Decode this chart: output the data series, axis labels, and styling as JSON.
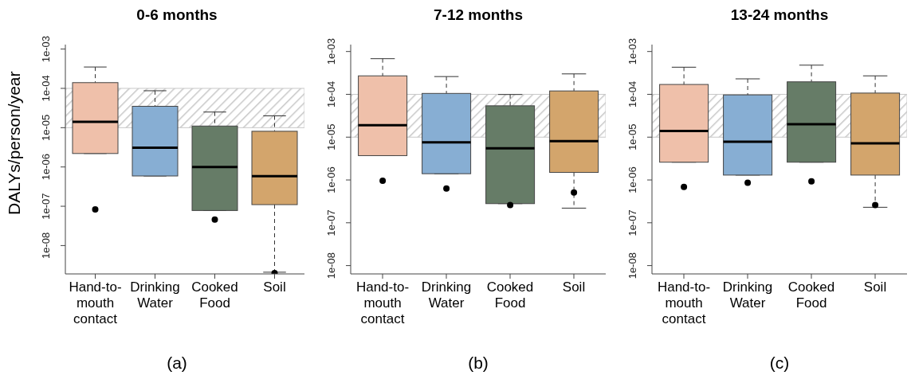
{
  "chart_data": [
    {
      "type": "box",
      "title": "0-6 months",
      "ylabel": "DALYs/person/year",
      "categories": [
        "Hand-to-mouth contact",
        "Drinking Water",
        "Cooked Food",
        "Soil"
      ],
      "colors": [
        "#efc0aa",
        "#87aed3",
        "#667c67",
        "#d3a56c"
      ],
      "boxes": [
        {
          "low": 2.2e-06,
          "q1": 2.2e-06,
          "median": 1.4e-05,
          "q3": 0.00014,
          "high": 0.00035,
          "outliers": [
            8.3e-08
          ]
        },
        {
          "low": 5.9e-07,
          "q1": 5.9e-07,
          "median": 3.1e-06,
          "q3": 3.5e-05,
          "high": 8.7e-05
        },
        {
          "low": 7.8e-08,
          "q1": 7.8e-08,
          "median": 1e-06,
          "q3": 1.1e-05,
          "high": 2.5e-05,
          "outliers": [
            4.6e-08
          ]
        },
        {
          "low": 2.1e-09,
          "q1": 1.1e-07,
          "median": 5.8e-07,
          "q3": 8.1e-06,
          "high": 2e-05,
          "outliers": [
            2e-09
          ]
        }
      ],
      "log": true,
      "ylim": [
        1.9e-09,
        0.0013
      ],
      "yticks": [
        {
          "value": 1e-08,
          "label": "1e-08"
        },
        {
          "value": 1e-07,
          "label": "1e-07"
        },
        {
          "value": 1e-06,
          "label": "1e-06"
        },
        {
          "value": 1e-05,
          "label": "1e-05"
        },
        {
          "value": 0.0001,
          "label": "1e-04"
        },
        {
          "value": 0.001,
          "label": "1e-03"
        }
      ],
      "bands": [
        {
          "axis": "y",
          "from": 1e-05,
          "to": 0.0001,
          "color": "#c8c8c8"
        }
      ],
      "annotations": [
        "(a)"
      ]
    },
    {
      "type": "box",
      "title": "7-12 months",
      "categories": [
        "Hand-to-mouth contact",
        "Drinking Water",
        "Cooked Food",
        "Soil"
      ],
      "colors": [
        "#efc0aa",
        "#87aed3",
        "#667c67",
        "#d3a56c"
      ],
      "boxes": [
        {
          "low": 3.7e-06,
          "q1": 3.7e-06,
          "median": 1.9e-05,
          "q3": 0.00027,
          "high": 0.00068,
          "outliers": [
            9.6e-07
          ]
        },
        {
          "low": 1.4e-06,
          "q1": 1.4e-06,
          "median": 7.6e-06,
          "q3": 0.000105,
          "high": 0.00026,
          "outliers": [
            6.3e-07
          ]
        },
        {
          "low": 2.8e-07,
          "q1": 2.8e-07,
          "median": 5.5e-06,
          "q3": 5.4e-05,
          "high": 9.9e-05,
          "outliers": [
            2.6e-07
          ]
        },
        {
          "low": 2.2e-07,
          "q1": 1.5e-06,
          "median": 8.1e-06,
          "q3": 0.00012,
          "high": 0.0003,
          "outliers": [
            5.1e-07
          ]
        }
      ],
      "log": true,
      "ylim": [
        6.4e-09,
        0.00145
      ],
      "yticks": [
        {
          "value": 1e-08,
          "label": "1e-08"
        },
        {
          "value": 1e-07,
          "label": "1e-07"
        },
        {
          "value": 1e-06,
          "label": "1e-06"
        },
        {
          "value": 1e-05,
          "label": "1e-05"
        },
        {
          "value": 0.0001,
          "label": "1e-04"
        },
        {
          "value": 0.001,
          "label": "1e-03"
        }
      ],
      "bands": [
        {
          "axis": "y",
          "from": 1e-05,
          "to": 0.0001,
          "color": "#c8c8c8"
        }
      ],
      "annotations": [
        "(b)"
      ]
    },
    {
      "type": "box",
      "title": "13-24 months",
      "categories": [
        "Hand-to-mouth contact",
        "Drinking Water",
        "Cooked Food",
        "Soil"
      ],
      "colors": [
        "#efc0aa",
        "#87aed3",
        "#667c67",
        "#d3a56c"
      ],
      "boxes": [
        {
          "low": 2.6e-06,
          "q1": 2.6e-06,
          "median": 1.4e-05,
          "q3": 0.00017,
          "high": 0.00043,
          "outliers": [
            6.9e-07
          ]
        },
        {
          "low": 1.3e-06,
          "q1": 1.3e-06,
          "median": 7.8e-06,
          "q3": 9.7e-05,
          "high": 0.00023,
          "outliers": [
            8.6e-07
          ]
        },
        {
          "low": 2.6e-06,
          "q1": 2.6e-06,
          "median": 2e-05,
          "q3": 0.000196,
          "high": 0.00048,
          "outliers": [
            9.3e-07
          ]
        },
        {
          "low": 2.3e-07,
          "q1": 1.3e-06,
          "median": 7.2e-06,
          "q3": 0.000107,
          "high": 0.00027,
          "outliers": [
            2.6e-07
          ]
        }
      ],
      "log": true,
      "ylim": [
        6.4e-09,
        0.00145
      ],
      "yticks": [
        {
          "value": 1e-08,
          "label": "1e-08"
        },
        {
          "value": 1e-07,
          "label": "1e-07"
        },
        {
          "value": 1e-06,
          "label": "1e-06"
        },
        {
          "value": 1e-05,
          "label": "1e-05"
        },
        {
          "value": 0.0001,
          "label": "1e-04"
        },
        {
          "value": 0.001,
          "label": "1e-03"
        }
      ],
      "bands": [
        {
          "axis": "y",
          "from": 1e-05,
          "to": 0.0001,
          "color": "#c8c8c8"
        }
      ],
      "annotations": [
        "(c)"
      ]
    }
  ]
}
